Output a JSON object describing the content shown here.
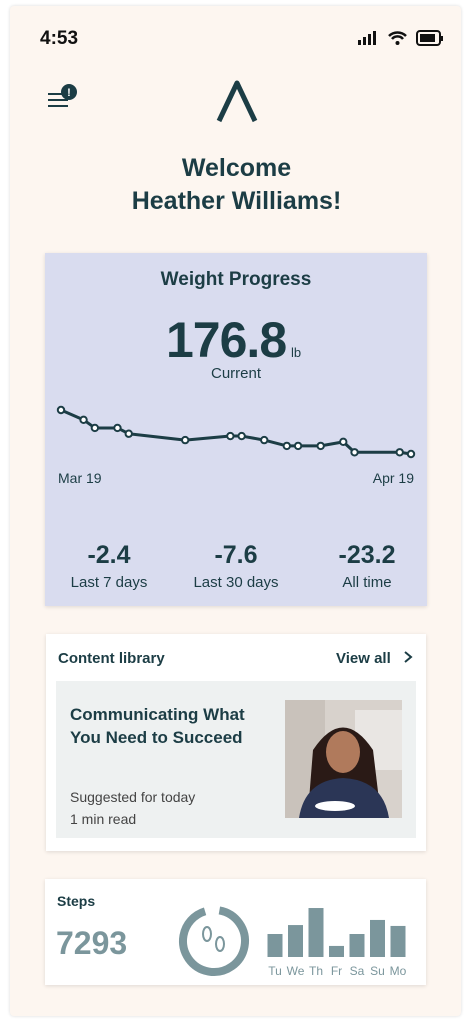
{
  "status_bar": {
    "time": "4:53"
  },
  "header": {
    "badge": "!",
    "welcome": [
      "Welcome",
      "Heather Williams!"
    ]
  },
  "weight_progress": {
    "title": "Weight Progress",
    "current_value": "176.8",
    "unit": "lb",
    "current_label": "Current",
    "chart_data": {
      "type": "line",
      "x": [
        0,
        2,
        3,
        5,
        6,
        11,
        15,
        16,
        18,
        20,
        21,
        23,
        25,
        26,
        30,
        31
      ],
      "values": [
        184.4,
        182.7,
        181.3,
        181.3,
        180.3,
        179.2,
        179.9,
        179.9,
        179.2,
        178.2,
        178.2,
        178.2,
        178.9,
        177.1,
        177.1,
        176.8
      ],
      "xlim": [
        0,
        31
      ],
      "ylim": [
        176.8,
        184.4
      ],
      "xticks": [
        {
          "value": 0,
          "label": "Mar 19"
        },
        {
          "value": 31,
          "label": "Apr 19"
        }
      ],
      "color": "#1c3d45"
    },
    "changes": [
      {
        "value": "-2.4",
        "label": "Last 7 days"
      },
      {
        "value": "-7.6",
        "label": "Last 30 days"
      },
      {
        "value": "-23.2",
        "label": "All time"
      }
    ]
  },
  "content_library": {
    "title": "Content library",
    "view_all": "View all",
    "article": {
      "title": "Communicating What You Need to Succeed",
      "subtitle": "Suggested for today",
      "read_time": "1 min read"
    }
  },
  "steps": {
    "title": "Steps",
    "count": "7293",
    "chart_data": {
      "type": "bar",
      "categories": [
        "Tu",
        "We",
        "Th",
        "Fr",
        "Sa",
        "Su",
        "Mo"
      ],
      "values": [
        5400,
        7500,
        11500,
        2600,
        5400,
        8700,
        7293
      ],
      "ylim": [
        0,
        11600
      ],
      "color": "#7b969c"
    }
  }
}
